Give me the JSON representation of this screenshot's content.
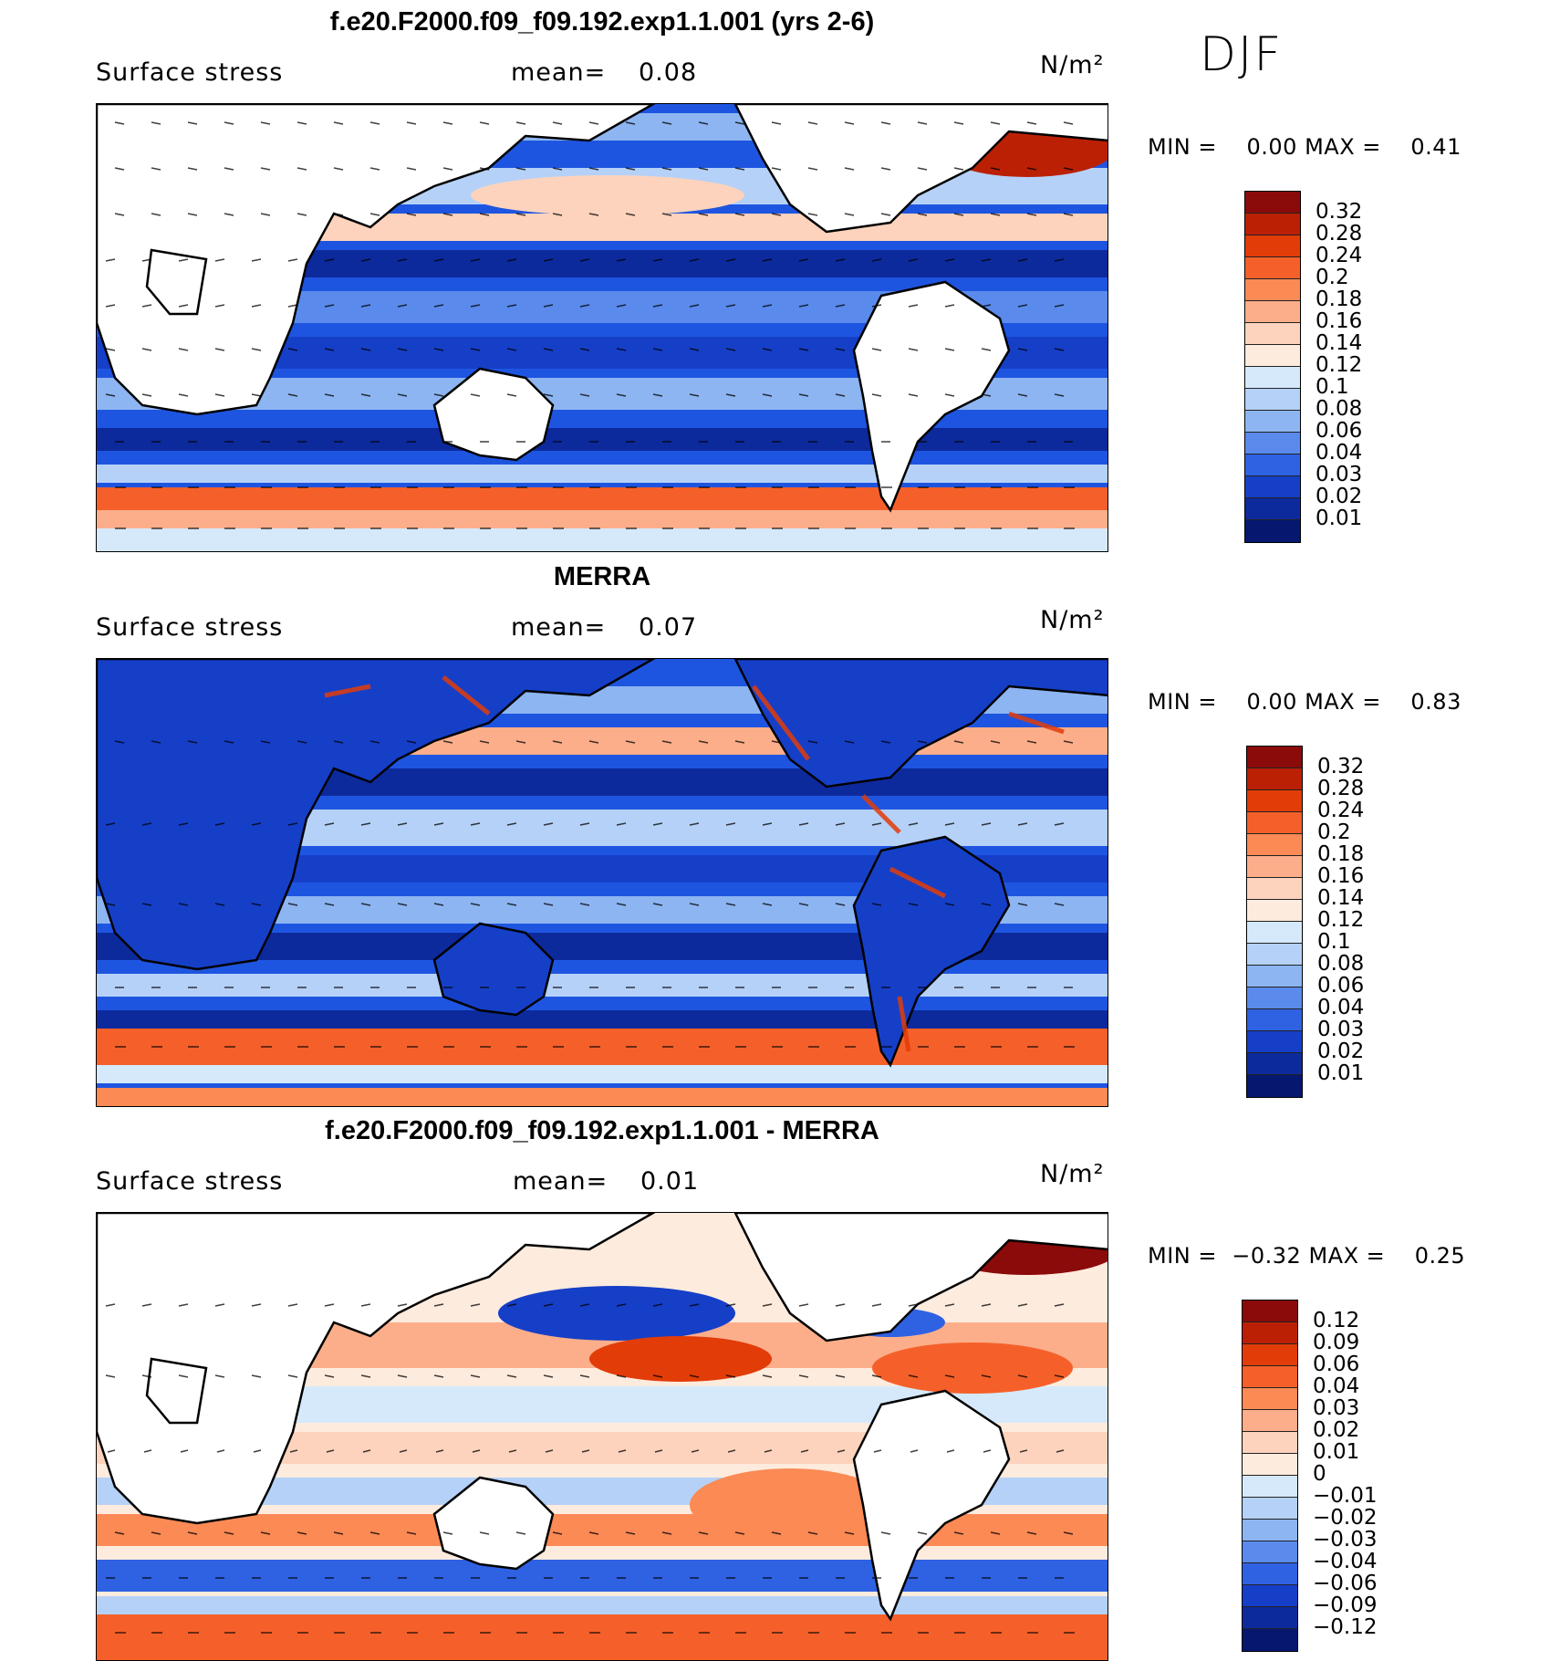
{
  "season": "DJF",
  "panels": [
    {
      "id": "model",
      "title": "f.e20.F2000.f09_f09.192.exp1.1.001 (yrs 2-6)",
      "variable": "Surface stress",
      "mean_label": "mean=",
      "mean": "0.08",
      "units": "N/m²",
      "min_label": "MIN =",
      "min": "0.00",
      "max_label": "MAX =",
      "max": "0.41",
      "colorbar_labels": [
        "0.32",
        "0.28",
        "0.24",
        "0.2",
        "0.18",
        "0.16",
        "0.14",
        "0.12",
        "0.1",
        "0.08",
        "0.06",
        "0.04",
        "0.03",
        "0.02",
        "0.01"
      ],
      "colorbar_colors": [
        "#8b0a0a",
        "#bb2005",
        "#e23c08",
        "#f5602a",
        "#fb8a55",
        "#fcae8a",
        "#fdd3bd",
        "#fdebdd",
        "#d5e9fb",
        "#b5d1f7",
        "#8db5f2",
        "#5a8bec",
        "#2f62e3",
        "#163fc8",
        "#0d2a9c",
        "#061770"
      ]
    },
    {
      "id": "obs",
      "title": "MERRA",
      "variable": "Surface stress",
      "mean_label": "mean=",
      "mean": "0.07",
      "units": "N/m²",
      "min_label": "MIN =",
      "min": "0.00",
      "max_label": "MAX =",
      "max": "0.83",
      "colorbar_labels": [
        "0.32",
        "0.28",
        "0.24",
        "0.2",
        "0.18",
        "0.16",
        "0.14",
        "0.12",
        "0.1",
        "0.08",
        "0.06",
        "0.04",
        "0.03",
        "0.02",
        "0.01"
      ],
      "colorbar_colors": [
        "#8b0a0a",
        "#bb2005",
        "#e23c08",
        "#f5602a",
        "#fb8a55",
        "#fcae8a",
        "#fdd3bd",
        "#fdebdd",
        "#d5e9fb",
        "#b5d1f7",
        "#8db5f2",
        "#5a8bec",
        "#2f62e3",
        "#163fc8",
        "#0d2a9c",
        "#061770"
      ]
    },
    {
      "id": "diff",
      "title": "f.e20.F2000.f09_f09.192.exp1.1.001 - MERRA",
      "variable": "Surface stress",
      "mean_label": "mean=",
      "mean": "0.01",
      "units": "N/m²",
      "min_label": "MIN =",
      "min": "−0.32",
      "max_label": "MAX =",
      "max": "0.25",
      "colorbar_labels": [
        "0.12",
        "0.09",
        "0.06",
        "0.04",
        "0.03",
        "0.02",
        "0.01",
        "0",
        "−0.01",
        "−0.02",
        "−0.03",
        "−0.04",
        "−0.06",
        "−0.09",
        "−0.12"
      ],
      "colorbar_colors": [
        "#8b0a0a",
        "#bb2005",
        "#e23c08",
        "#f5602a",
        "#fb8a55",
        "#fcae8a",
        "#fdd3bd",
        "#fdebdd",
        "#d5e9fb",
        "#b5d1f7",
        "#8db5f2",
        "#5a8bec",
        "#2f62e3",
        "#163fc8",
        "#0d2a9c",
        "#061770"
      ]
    }
  ]
}
